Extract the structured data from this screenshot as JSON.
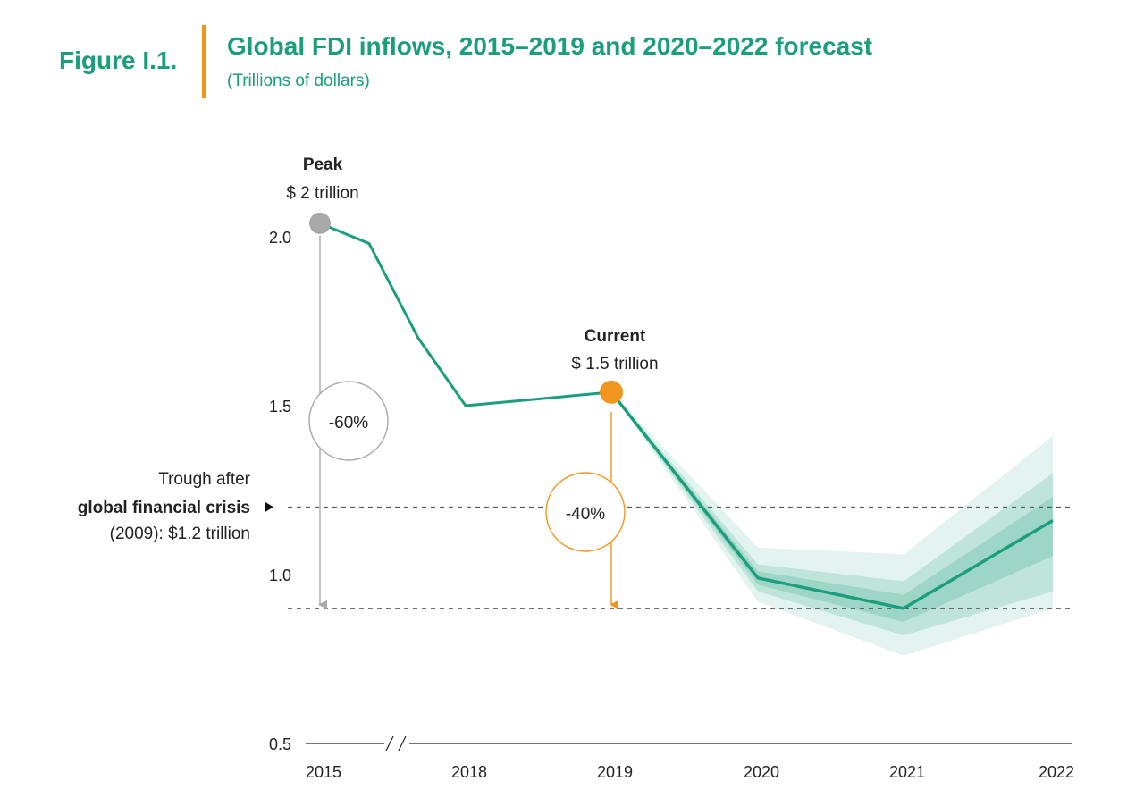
{
  "figure": {
    "label": "Figure I.1.",
    "title": "Global FDI inflows, 2015–2019 and 2020–2022 forecast",
    "subtitle": "(Trillions of dollars)"
  },
  "annotations": {
    "peak_label": "Peak",
    "peak_value": "$ 2 trillion",
    "current_label": "Current",
    "current_value": "$ 1.5 trillion",
    "peak_drop": "-60%",
    "current_drop": "-40%",
    "trough_line1": "Trough after",
    "trough_line2": "global financial crisis",
    "trough_line3": "(2009): $1.2 trillion"
  },
  "colors": {
    "series": "#1a9e7c",
    "accent": "#f0961e",
    "peak": "#a8a8a8",
    "text": "#222222"
  },
  "chart_data": {
    "type": "line",
    "title": "Global FDI inflows, 2015–2019 and 2020–2022 forecast",
    "ylabel": "(Trillions of dollars)",
    "ylim": [
      0.5,
      2.0
    ],
    "yticks": [
      0.5,
      1.0,
      1.5,
      2.0
    ],
    "x_tick_labels": [
      "2015",
      "2018",
      "2019",
      "2020",
      "2021",
      "2022"
    ],
    "axis_break": "between 2015 and 2018",
    "grid": false,
    "historical": [
      {
        "x": "2015",
        "y": 2.04
      },
      {
        "x": "2016",
        "y": 1.98
      },
      {
        "x": "2017",
        "y": 1.7
      },
      {
        "x": "2018",
        "y": 1.5
      },
      {
        "x": "2019",
        "y": 1.54
      }
    ],
    "forecast": [
      {
        "x": "2019",
        "y": 1.54
      },
      {
        "x": "2020",
        "y": 0.99
      },
      {
        "x": "2021",
        "y": 0.9
      },
      {
        "x": "2022",
        "y": 1.16
      }
    ],
    "forecast_band": {
      "outer_upper": [
        1.54,
        1.08,
        1.06,
        1.41
      ],
      "outer_lower": [
        1.54,
        0.92,
        0.76,
        0.9
      ],
      "inner_upper": [
        1.54,
        1.03,
        0.98,
        1.3
      ],
      "inner_lower": [
        1.54,
        0.95,
        0.82,
        0.95
      ]
    },
    "reference_lines": [
      {
        "y": 1.2,
        "label": "Trough after global financial crisis (2009): $1.2 trillion"
      },
      {
        "y": 0.9
      }
    ],
    "markers": [
      {
        "x": "2015",
        "y": 2.04,
        "label": "Peak $ 2 trillion"
      },
      {
        "x": "2019",
        "y": 1.54,
        "label": "Current $ 1.5 trillion"
      }
    ],
    "change_annotations": [
      "-60%",
      "-40%"
    ]
  }
}
